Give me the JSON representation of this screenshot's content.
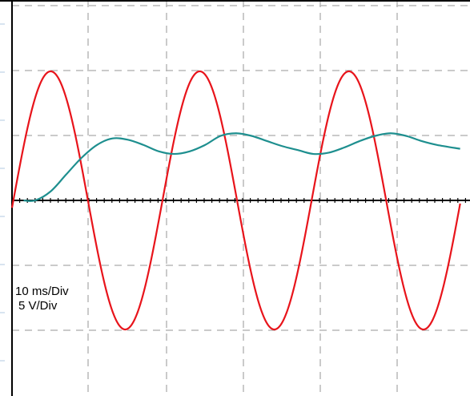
{
  "chart_data": {
    "type": "line",
    "title": "",
    "xlabel": "",
    "ylabel": "",
    "grid": true,
    "time_scale_label": "10 ms/Div",
    "voltage_scale_label": "5 V/Div",
    "divisions": {
      "x": 5.5,
      "y": 6
    },
    "x_unit": "ms",
    "y_unit": "V",
    "xlim": [
      0,
      58
    ],
    "ylim": [
      -15,
      15
    ],
    "series": [
      {
        "color": "#e8141b",
        "kind": "sine",
        "amplitude_v": 10,
        "period_ms": 19.3,
        "first_peak_ms": 5.0,
        "points": [
          [
            0.0,
            0.2
          ],
          [
            5.0,
            10.0
          ],
          [
            9.8,
            0.0
          ],
          [
            14.6,
            -10.0
          ],
          [
            19.3,
            0.0
          ],
          [
            24.3,
            10.0
          ],
          [
            29.1,
            0.0
          ],
          [
            33.9,
            -10.0
          ],
          [
            38.6,
            0.0
          ],
          [
            43.6,
            10.0
          ],
          [
            48.4,
            0.0
          ],
          [
            53.2,
            -10.0
          ],
          [
            58.0,
            0.0
          ]
        ]
      },
      {
        "color": "#1e8f8f",
        "kind": "smoothed",
        "points": [
          [
            1.5,
            0.0
          ],
          [
            3.0,
            0.0
          ],
          [
            5.0,
            0.7
          ],
          [
            7.0,
            2.0
          ],
          [
            9.0,
            3.3
          ],
          [
            11.0,
            4.3
          ],
          [
            13.0,
            4.8
          ],
          [
            15.0,
            4.7
          ],
          [
            17.0,
            4.3
          ],
          [
            19.0,
            3.8
          ],
          [
            21.0,
            3.6
          ],
          [
            23.0,
            3.8
          ],
          [
            25.0,
            4.3
          ],
          [
            27.0,
            5.0
          ],
          [
            29.0,
            5.2
          ],
          [
            31.0,
            5.0
          ],
          [
            33.0,
            4.6
          ],
          [
            35.0,
            4.2
          ],
          [
            37.0,
            3.9
          ],
          [
            39.0,
            3.6
          ],
          [
            41.0,
            3.7
          ],
          [
            43.0,
            4.1
          ],
          [
            45.0,
            4.6
          ],
          [
            47.0,
            5.0
          ],
          [
            49.0,
            5.2
          ],
          [
            51.0,
            5.0
          ],
          [
            53.0,
            4.6
          ],
          [
            55.0,
            4.3
          ],
          [
            58.0,
            4.0
          ]
        ]
      }
    ]
  }
}
